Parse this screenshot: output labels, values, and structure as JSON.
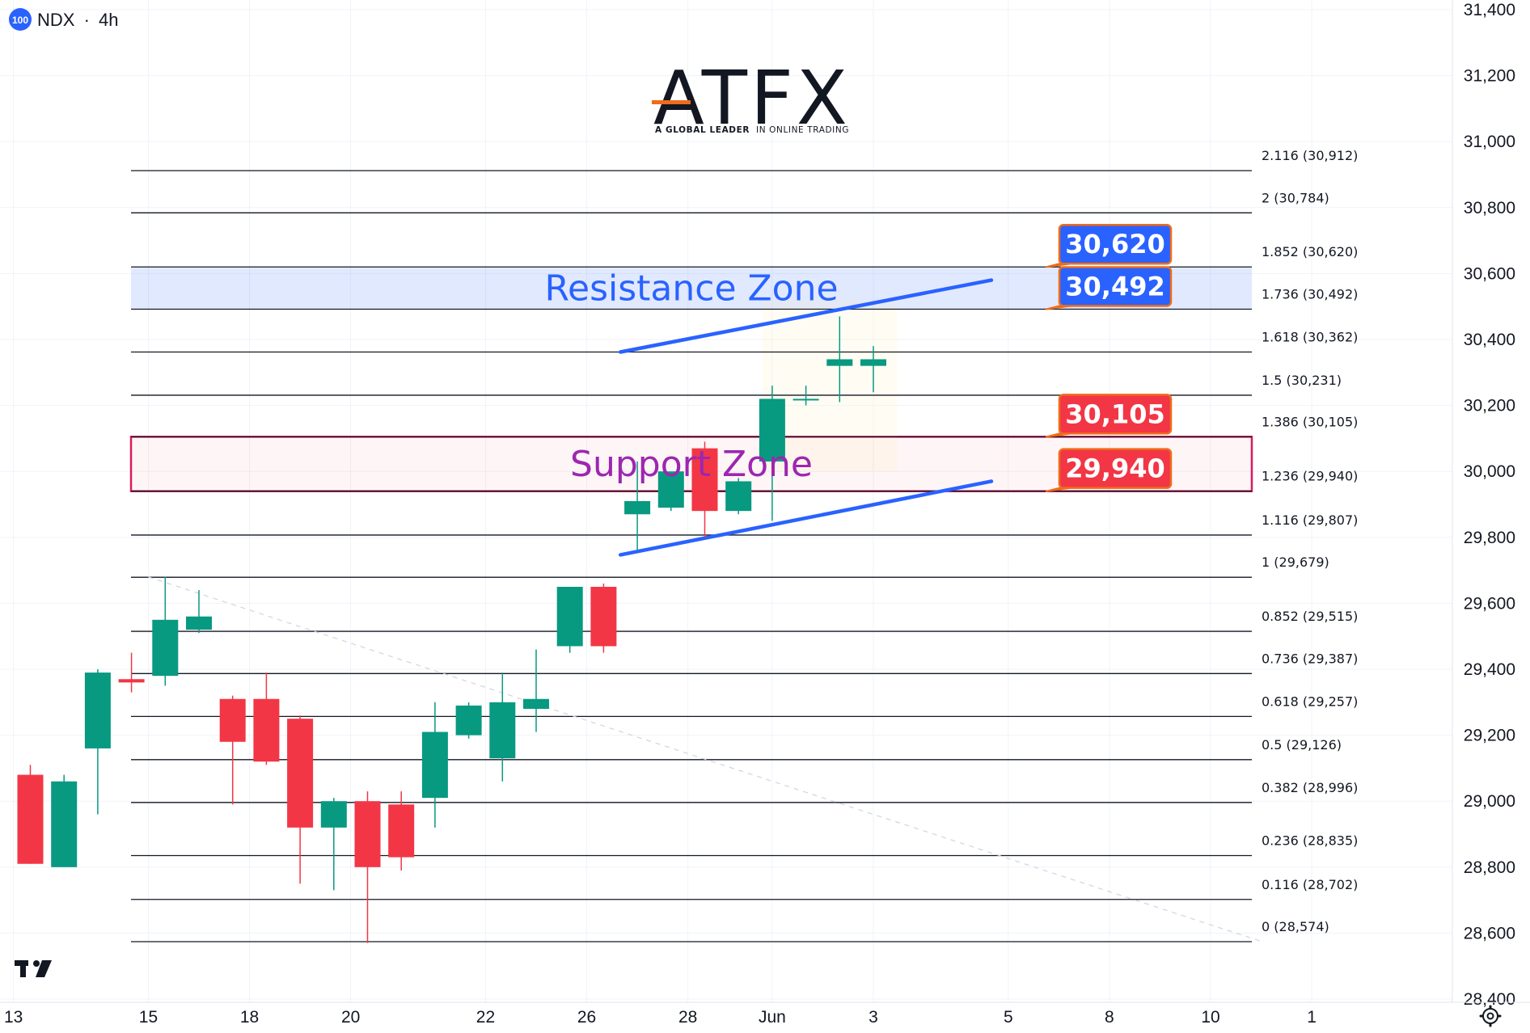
{
  "header": {
    "badge": "100",
    "symbol": "NDX",
    "separator": "·",
    "interval": "4h"
  },
  "logo": {
    "brand": "ATFX",
    "tagline_bold": "A GLOBAL LEADER",
    "tagline_rest": "IN ONLINE TRADING",
    "accent_color": "#ef6c1a"
  },
  "watermark_icon": "tradingview-logo-icon",
  "settings_icon": "gear-icon",
  "colors": {
    "up": "#089981",
    "down": "#f23645",
    "resistance": "#2962ff",
    "support": "#d81b60",
    "trendline": "#2962ff",
    "label_blue": "#2962ff",
    "label_red": "#f23645",
    "label_border": "#ef6c1a"
  },
  "chart_data": {
    "type": "candlestick",
    "interval": "4h",
    "y_axis": {
      "ylim": [
        28400,
        31400
      ],
      "ticks": [
        "28,400",
        "28,600",
        "28,800",
        "29,000",
        "29,200",
        "29,400",
        "29,600",
        "29,800",
        "30,000",
        "30,200",
        "30,400",
        "30,600",
        "30,800",
        "31,000",
        "31,200",
        "31,400"
      ],
      "tick_values": [
        28400,
        28600,
        28800,
        29000,
        29200,
        29400,
        29600,
        29800,
        30000,
        30200,
        30400,
        30600,
        30800,
        31000,
        31200,
        31400
      ],
      "position": "right"
    },
    "x_axis": {
      "ticks": [
        "13",
        "15",
        "18",
        "20",
        "22",
        "26",
        "28",
        "Jun",
        "3",
        "5",
        "8",
        "10",
        "1"
      ],
      "tick_index": [
        -0.5,
        3.5,
        6.5,
        9.5,
        13.5,
        16.5,
        19.5,
        22,
        25,
        29,
        32,
        35,
        38
      ]
    },
    "candles": [
      {
        "o": 29080,
        "h": 29110,
        "l": 28810,
        "c": 28810
      },
      {
        "o": 28800,
        "h": 29080,
        "l": 28800,
        "c": 29060
      },
      {
        "o": 29160,
        "h": 29400,
        "l": 28960,
        "c": 29390
      },
      {
        "o": 29370,
        "h": 29450,
        "l": 29330,
        "c": 29360
      },
      {
        "o": 29380,
        "h": 29680,
        "l": 29350,
        "c": 29550
      },
      {
        "o": 29520,
        "h": 29640,
        "l": 29510,
        "c": 29560
      },
      {
        "o": 29310,
        "h": 29320,
        "l": 28990,
        "c": 29180
      },
      {
        "o": 29310,
        "h": 29390,
        "l": 29110,
        "c": 29120
      },
      {
        "o": 29250,
        "h": 29260,
        "l": 28750,
        "c": 28920
      },
      {
        "o": 28920,
        "h": 29010,
        "l": 28730,
        "c": 29000
      },
      {
        "o": 29000,
        "h": 29030,
        "l": 28570,
        "c": 28800
      },
      {
        "o": 28990,
        "h": 29030,
        "l": 28790,
        "c": 28830
      },
      {
        "o": 29010,
        "h": 29300,
        "l": 28920,
        "c": 29210
      },
      {
        "o": 29200,
        "h": 29300,
        "l": 29190,
        "c": 29290
      },
      {
        "o": 29130,
        "h": 29390,
        "l": 29060,
        "c": 29300
      },
      {
        "o": 29280,
        "h": 29460,
        "l": 29210,
        "c": 29310
      },
      {
        "o": 29470,
        "h": 29650,
        "l": 29450,
        "c": 29650
      },
      {
        "o": 29650,
        "h": 29660,
        "l": 29450,
        "c": 29470
      },
      {
        "o": 29870,
        "h": 30030,
        "l": 29760,
        "c": 29910
      },
      {
        "o": 29890,
        "h": 29990,
        "l": 29880,
        "c": 30000
      },
      {
        "o": 30070,
        "h": 30090,
        "l": 29800,
        "c": 29880
      },
      {
        "o": 29880,
        "h": 29980,
        "l": 29870,
        "c": 29970
      },
      {
        "o": 30030,
        "h": 30260,
        "l": 29850,
        "c": 30220
      },
      {
        "o": 30220,
        "h": 30260,
        "l": 30200,
        "c": 30220
      },
      {
        "o": 30320,
        "h": 30470,
        "l": 30210,
        "c": 30340
      },
      {
        "o": 30320,
        "h": 30380,
        "l": 30240,
        "c": 30340
      }
    ],
    "fibonacci": [
      {
        "label": "0 (28,574)",
        "value": 28574
      },
      {
        "label": "0.116 (28,702)",
        "value": 28702
      },
      {
        "label": "0.236 (28,835)",
        "value": 28835
      },
      {
        "label": "0.382 (28,996)",
        "value": 28996
      },
      {
        "label": "0.5 (29,126)",
        "value": 29126
      },
      {
        "label": "0.618 (29,257)",
        "value": 29257
      },
      {
        "label": "0.736 (29,387)",
        "value": 29387
      },
      {
        "label": "0.852 (29,515)",
        "value": 29515
      },
      {
        "label": "1 (29,679)",
        "value": 29679
      },
      {
        "label": "1.116 (29,807)",
        "value": 29807
      },
      {
        "label": "1.236 (29,940)",
        "value": 29940
      },
      {
        "label": "1.386 (30,105)",
        "value": 30105
      },
      {
        "label": "1.5 (30,231)",
        "value": 30231
      },
      {
        "label": "1.618 (30,362)",
        "value": 30362
      },
      {
        "label": "1.736 (30,492)",
        "value": 30492
      },
      {
        "label": "1.852 (30,620)",
        "value": 30620
      },
      {
        "label": "2 (30,784)",
        "value": 30784
      },
      {
        "label": "2.116 (30,912)",
        "value": 30912
      }
    ],
    "zones": [
      {
        "label": "Resistance Zone",
        "low": 30492,
        "high": 30620,
        "kind": "resistance"
      },
      {
        "label": "Support Zone",
        "low": 29940,
        "high": 30105,
        "kind": "support"
      }
    ],
    "trendlines": [
      {
        "kind": "channel-upper",
        "from": {
          "i": 17.5,
          "v": 30362
        },
        "to": {
          "i": 28.5,
          "v": 30580
        }
      },
      {
        "kind": "channel-lower",
        "from": {
          "i": 17.5,
          "v": 29747
        },
        "to": {
          "i": 28.5,
          "v": 29970
        }
      },
      {
        "kind": "dashed-diagonal",
        "from": {
          "i": 3.5,
          "v": 29680
        },
        "to": {
          "i": 36.5,
          "v": 28575
        }
      }
    ],
    "price_labels": [
      {
        "text": "30,620",
        "value": 30620,
        "kind": "blue"
      },
      {
        "text": "30,492",
        "value": 30492,
        "kind": "blue"
      },
      {
        "text": "30,105",
        "value": 30105,
        "kind": "red"
      },
      {
        "text": "29,940",
        "value": 29940,
        "kind": "red"
      }
    ]
  }
}
